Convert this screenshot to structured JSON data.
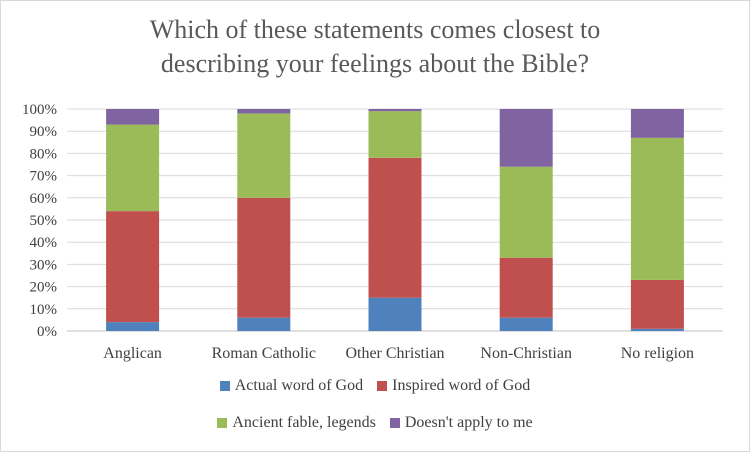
{
  "chart_data": {
    "type": "bar",
    "stacked": true,
    "title_lines": [
      "Which of these statements comes closest to",
      "describing your feelings about the Bible?"
    ],
    "categories": [
      "Anglican",
      "Roman Catholic",
      "Other Christian",
      "Non-Christian",
      "No religion"
    ],
    "ylim": [
      0,
      100
    ],
    "yticks": [
      "0%",
      "10%",
      "20%",
      "30%",
      "40%",
      "50%",
      "60%",
      "70%",
      "80%",
      "90%",
      "100%"
    ],
    "grid": true,
    "legend_position": "bottom",
    "series": [
      {
        "name": "Actual word of God",
        "color": "#4f81bd",
        "values": [
          4,
          6,
          15,
          6,
          1
        ]
      },
      {
        "name": "Inspired word of God",
        "color": "#c0504d",
        "values": [
          50,
          54,
          63,
          27,
          22
        ]
      },
      {
        "name": "Ancient fable, legends",
        "color": "#9bbb59",
        "values": [
          39,
          38,
          21,
          41,
          64
        ]
      },
      {
        "name": "Doesn't apply to me",
        "color": "#8064a2",
        "values": [
          7,
          2,
          1,
          26,
          13
        ]
      }
    ]
  }
}
